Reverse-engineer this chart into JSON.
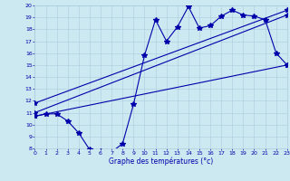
{
  "xlabel": "Graphe des températures (°c)",
  "bg_color": "#cce8f0",
  "line_color": "#0000aa",
  "grid_color": "#aaccdd",
  "ylim": [
    8,
    20
  ],
  "xlim": [
    0,
    23
  ],
  "yticks": [
    8,
    9,
    10,
    11,
    12,
    13,
    14,
    15,
    16,
    17,
    18,
    19,
    20
  ],
  "xticks": [
    0,
    1,
    2,
    3,
    4,
    5,
    6,
    7,
    8,
    9,
    10,
    11,
    12,
    13,
    14,
    15,
    16,
    17,
    18,
    19,
    20,
    21,
    22,
    23
  ],
  "temp_x": [
    0,
    1,
    2,
    3,
    4,
    5,
    6,
    7,
    8,
    9,
    10,
    11,
    12,
    13,
    14,
    15,
    16,
    17,
    18,
    19,
    20,
    21,
    22,
    23
  ],
  "temp_y": [
    10.7,
    10.9,
    10.9,
    10.3,
    9.3,
    7.9,
    7.8,
    7.7,
    8.4,
    11.7,
    15.8,
    18.8,
    17.0,
    18.2,
    19.9,
    18.1,
    18.3,
    19.1,
    19.6,
    19.2,
    19.1,
    18.8,
    16.0,
    15.0
  ],
  "line1_x": [
    0,
    23
  ],
  "line1_y": [
    11.0,
    19.2
  ],
  "line2_x": [
    0,
    23
  ],
  "line2_y": [
    10.7,
    15.0
  ],
  "line3_x": [
    0,
    23
  ],
  "line3_y": [
    11.8,
    19.6
  ]
}
